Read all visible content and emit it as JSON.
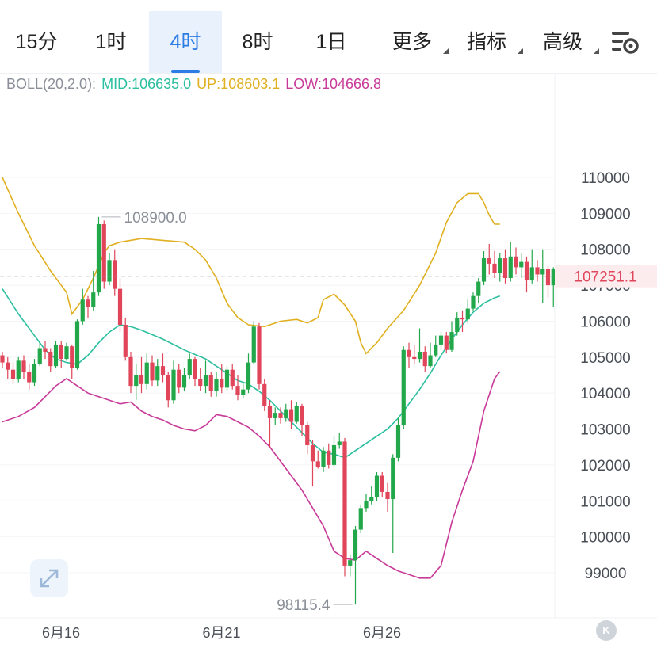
{
  "tabs": [
    {
      "label": "15分",
      "active": false,
      "dropdown": false
    },
    {
      "label": "1时",
      "active": false,
      "dropdown": false
    },
    {
      "label": "4时",
      "active": true,
      "dropdown": false
    },
    {
      "label": "8时",
      "active": false,
      "dropdown": false
    },
    {
      "label": "1日",
      "active": false,
      "dropdown": false
    },
    {
      "label": "更多",
      "active": false,
      "dropdown": true
    },
    {
      "label": "指标",
      "active": false,
      "dropdown": true
    },
    {
      "label": "高级",
      "active": false,
      "dropdown": true
    }
  ],
  "settings_icon": "chart-settings-icon",
  "indicator": {
    "name": "BOLL(20,2.0):",
    "mid": "MID:106635.0",
    "up": "UP:108603.1",
    "low": "LOW:104666.8",
    "colors": {
      "name": "#8a8f98",
      "mid": "#2bbfa0",
      "up": "#e0b020",
      "low": "#c83a98"
    }
  },
  "current_price": "107251.1",
  "high_label": "108900.0",
  "low_label": "98115.4",
  "expand_icon": "expand-arrows-icon",
  "k_badge": "K",
  "colors": {
    "up": "#22a84a",
    "down": "#e0455a",
    "price_tag": "#e0455a",
    "grid": "#eef0f3",
    "axis_text": "#4a4f57"
  },
  "chart_data": {
    "type": "candlestick",
    "y_ticks": [
      110000,
      109000,
      108000,
      107000,
      106000,
      105000,
      104000,
      103000,
      102000,
      101000,
      100000,
      99000
    ],
    "y_tick_labels": [
      "110000",
      "109000",
      "108000",
      "107000",
      "106000",
      "105000",
      "104000",
      "103000",
      "102000",
      "101000",
      "100000",
      "99000"
    ],
    "ylim": [
      98000,
      111500
    ],
    "x_ticks": [
      {
        "label": "6月16",
        "index": 8
      },
      {
        "label": "6月21",
        "index": 38
      },
      {
        "label": "6月26",
        "index": 68
      }
    ],
    "candles": [
      [
        105050,
        104850,
        105150,
        104700
      ],
      [
        104850,
        104650,
        105000,
        104400
      ],
      [
        104650,
        104400,
        104850,
        104250
      ],
      [
        104400,
        104900,
        105000,
        104300
      ],
      [
        104900,
        104600,
        105050,
        104400
      ],
      [
        104600,
        104300,
        104800,
        104100
      ],
      [
        104300,
        104800,
        104950,
        104200
      ],
      [
        104800,
        105250,
        105400,
        104750
      ],
      [
        105250,
        105150,
        105450,
        104950
      ],
      [
        105150,
        104750,
        105250,
        104600
      ],
      [
        104750,
        105350,
        105450,
        104700
      ],
      [
        105350,
        104950,
        105450,
        104700
      ],
      [
        104950,
        105300,
        105400,
        104900
      ],
      [
        105300,
        104700,
        105350,
        104400
      ],
      [
        104700,
        106000,
        106050,
        104650
      ],
      [
        106000,
        106600,
        106900,
        105900
      ],
      [
        106600,
        106400,
        106700,
        106100
      ],
      [
        106400,
        106800,
        107400,
        106300
      ],
      [
        106800,
        108700,
        108900,
        106700
      ],
      [
        108700,
        107100,
        108800,
        106900
      ],
      [
        107100,
        107700,
        107900,
        107000
      ],
      [
        107700,
        106900,
        108000,
        106700
      ],
      [
        106900,
        105900,
        107200,
        105700
      ],
      [
        105900,
        105000,
        106100,
        104900
      ],
      [
        105000,
        104200,
        105150,
        104000
      ],
      [
        104200,
        104500,
        104800,
        103800
      ],
      [
        104500,
        104250,
        105000,
        104000
      ],
      [
        104250,
        104850,
        105100,
        104100
      ],
      [
        104850,
        104350,
        105050,
        104200
      ],
      [
        104350,
        104750,
        104950,
        104200
      ],
      [
        104750,
        104500,
        105100,
        104300
      ],
      [
        104500,
        103800,
        104600,
        103600
      ],
      [
        103800,
        104650,
        104900,
        103700
      ],
      [
        104650,
        104150,
        104800,
        104000
      ],
      [
        104150,
        104500,
        104700,
        104050
      ],
      [
        104500,
        104950,
        105100,
        104400
      ],
      [
        104950,
        104400,
        105000,
        104200
      ],
      [
        104400,
        104200,
        104700,
        104050
      ],
      [
        104200,
        104500,
        104900,
        104000
      ],
      [
        104500,
        104050,
        104600,
        103900
      ],
      [
        104050,
        104400,
        104600,
        103900
      ],
      [
        104400,
        104150,
        104800,
        104000
      ],
      [
        104150,
        104650,
        104750,
        104050
      ],
      [
        104650,
        104200,
        104800,
        104100
      ],
      [
        104200,
        103950,
        104500,
        103800
      ],
      [
        103950,
        104100,
        104300,
        103850
      ],
      [
        104100,
        104850,
        105100,
        104000
      ],
      [
        104850,
        105850,
        106000,
        104800
      ],
      [
        105850,
        104250,
        105950,
        104100
      ],
      [
        104250,
        103650,
        104400,
        103500
      ],
      [
        103650,
        103300,
        103800,
        102500
      ],
      [
        103300,
        103450,
        103600,
        103100
      ],
      [
        103450,
        103300,
        103600,
        103150
      ],
      [
        103300,
        103550,
        103700,
        103200
      ],
      [
        103550,
        103200,
        103800,
        103000
      ],
      [
        103200,
        103650,
        103750,
        103150
      ],
      [
        103650,
        103100,
        103700,
        102800
      ],
      [
        103100,
        102550,
        103200,
        102300
      ],
      [
        102550,
        102100,
        102700,
        101400
      ],
      [
        102100,
        101950,
        102400,
        101900
      ],
      [
        101950,
        102400,
        102500,
        101800
      ],
      [
        102400,
        102000,
        102600,
        101900
      ],
      [
        102000,
        102550,
        102800,
        101950
      ],
      [
        102550,
        102650,
        102900,
        102450
      ],
      [
        102650,
        99200,
        102750,
        98900
      ],
      [
        99200,
        99350,
        99500,
        98900
      ],
      [
        99350,
        100200,
        100300,
        98115
      ],
      [
        100200,
        100800,
        100900,
        100100
      ],
      [
        100800,
        101000,
        101200,
        100700
      ],
      [
        101000,
        101100,
        101400,
        100900
      ],
      [
        101100,
        101700,
        101800,
        101000
      ],
      [
        101700,
        101250,
        101800,
        101100
      ],
      [
        101250,
        101050,
        101500,
        100700
      ],
      [
        101050,
        102200,
        102300,
        99550
      ],
      [
        102200,
        103100,
        103300,
        102100
      ],
      [
        103100,
        105200,
        105300,
        103000
      ],
      [
        105200,
        105000,
        105400,
        104700
      ],
      [
        105000,
        104950,
        105350,
        104800
      ],
      [
        104950,
        105150,
        105800,
        104850
      ],
      [
        105150,
        104750,
        105300,
        104600
      ],
      [
        104750,
        105050,
        105400,
        104700
      ],
      [
        105050,
        105350,
        105600,
        105000
      ],
      [
        105350,
        105600,
        105700,
        105200
      ],
      [
        105600,
        105200,
        105700,
        105100
      ],
      [
        105200,
        105700,
        106000,
        105150
      ],
      [
        105700,
        106100,
        106250,
        105600
      ],
      [
        106100,
        106050,
        106300,
        105700
      ],
      [
        106050,
        106350,
        106600,
        105950
      ],
      [
        106350,
        106700,
        106800,
        106300
      ],
      [
        106700,
        107100,
        107200,
        106500
      ],
      [
        107100,
        107750,
        107950,
        107000
      ],
      [
        107750,
        107600,
        108150,
        107300
      ],
      [
        107600,
        107350,
        107950,
        107200
      ],
      [
        107350,
        107750,
        107900,
        107100
      ],
      [
        107750,
        107200,
        108000,
        107050
      ],
      [
        107200,
        107800,
        108200,
        107100
      ],
      [
        107800,
        107500,
        108050,
        107300
      ],
      [
        107500,
        107650,
        107900,
        107200
      ],
      [
        107650,
        107150,
        107800,
        106800
      ],
      [
        107150,
        107500,
        108000,
        107050
      ],
      [
        107500,
        107300,
        107700,
        107100
      ],
      [
        107300,
        107450,
        108000,
        106500
      ],
      [
        107450,
        107000,
        107550,
        106650
      ],
      [
        107000,
        107450,
        107500,
        106400
      ],
      [
        107450,
        107250,
        107550,
        107100
      ]
    ],
    "boll_up": [
      [
        0,
        110000
      ],
      [
        3,
        109000
      ],
      [
        6,
        108100
      ],
      [
        9,
        107400
      ],
      [
        12,
        106800
      ],
      [
        13,
        106200
      ],
      [
        15,
        106600
      ],
      [
        17,
        107200
      ],
      [
        19,
        107900
      ],
      [
        20,
        108100
      ],
      [
        22,
        108200
      ],
      [
        26,
        108300
      ],
      [
        30,
        108250
      ],
      [
        34,
        108200
      ],
      [
        36,
        108000
      ],
      [
        38,
        107700
      ],
      [
        40,
        107200
      ],
      [
        42,
        106500
      ],
      [
        44,
        106100
      ],
      [
        46,
        105900
      ],
      [
        49,
        105850
      ],
      [
        52,
        106000
      ],
      [
        55,
        106050
      ],
      [
        57,
        105950
      ],
      [
        59,
        106100
      ],
      [
        60,
        106600
      ],
      [
        62,
        106750
      ],
      [
        64,
        106450
      ],
      [
        66,
        106000
      ],
      [
        67,
        105400
      ],
      [
        68,
        105100
      ],
      [
        70,
        105400
      ],
      [
        72,
        105800
      ],
      [
        75,
        106300
      ],
      [
        78,
        107000
      ],
      [
        81,
        107900
      ],
      [
        83,
        108750
      ],
      [
        85,
        109300
      ],
      [
        87,
        109550
      ],
      [
        89,
        109550
      ],
      [
        90,
        109300
      ],
      [
        91,
        108950
      ],
      [
        92,
        108700
      ],
      [
        93,
        108700
      ]
    ],
    "boll_mid": [
      [
        0,
        106900
      ],
      [
        3,
        106200
      ],
      [
        6,
        105600
      ],
      [
        8,
        105200
      ],
      [
        10,
        104950
      ],
      [
        12,
        104850
      ],
      [
        14,
        104800
      ],
      [
        16,
        105050
      ],
      [
        18,
        105400
      ],
      [
        20,
        105700
      ],
      [
        22,
        105900
      ],
      [
        24,
        105850
      ],
      [
        26,
        105750
      ],
      [
        30,
        105500
      ],
      [
        34,
        105200
      ],
      [
        38,
        104950
      ],
      [
        40,
        104750
      ],
      [
        42,
        104550
      ],
      [
        44,
        104350
      ],
      [
        46,
        104250
      ],
      [
        48,
        104050
      ],
      [
        50,
        103800
      ],
      [
        52,
        103500
      ],
      [
        54,
        103200
      ],
      [
        56,
        102900
      ],
      [
        58,
        102600
      ],
      [
        60,
        102350
      ],
      [
        62,
        102300
      ],
      [
        64,
        102200
      ],
      [
        66,
        102400
      ],
      [
        68,
        102600
      ],
      [
        70,
        102800
      ],
      [
        72,
        103000
      ],
      [
        74,
        103300
      ],
      [
        76,
        103700
      ],
      [
        78,
        104100
      ],
      [
        80,
        104550
      ],
      [
        82,
        105050
      ],
      [
        84,
        105500
      ],
      [
        86,
        105900
      ],
      [
        88,
        106250
      ],
      [
        90,
        106500
      ],
      [
        92,
        106650
      ],
      [
        93,
        106700
      ]
    ],
    "boll_low": [
      [
        0,
        103200
      ],
      [
        3,
        103350
      ],
      [
        6,
        103600
      ],
      [
        8,
        103900
      ],
      [
        10,
        104200
      ],
      [
        12,
        104400
      ],
      [
        14,
        104200
      ],
      [
        16,
        104000
      ],
      [
        18,
        103900
      ],
      [
        20,
        103800
      ],
      [
        22,
        103700
      ],
      [
        24,
        103750
      ],
      [
        26,
        103500
      ],
      [
        28,
        103350
      ],
      [
        30,
        103250
      ],
      [
        32,
        103100
      ],
      [
        34,
        103000
      ],
      [
        36,
        102950
      ],
      [
        38,
        103100
      ],
      [
        40,
        103400
      ],
      [
        42,
        103350
      ],
      [
        44,
        103200
      ],
      [
        46,
        103050
      ],
      [
        48,
        102800
      ],
      [
        50,
        102500
      ],
      [
        52,
        102100
      ],
      [
        54,
        101700
      ],
      [
        56,
        101300
      ],
      [
        58,
        100800
      ],
      [
        60,
        100300
      ],
      [
        62,
        99600
      ],
      [
        64,
        99400
      ],
      [
        66,
        99350
      ],
      [
        68,
        99600
      ],
      [
        70,
        99400
      ],
      [
        72,
        99200
      ],
      [
        74,
        99050
      ],
      [
        76,
        98950
      ],
      [
        78,
        98850
      ],
      [
        80,
        98850
      ],
      [
        82,
        99200
      ],
      [
        84,
        100400
      ],
      [
        86,
        101300
      ],
      [
        88,
        102100
      ],
      [
        90,
        103500
      ],
      [
        92,
        104400
      ],
      [
        93,
        104600
      ]
    ]
  }
}
